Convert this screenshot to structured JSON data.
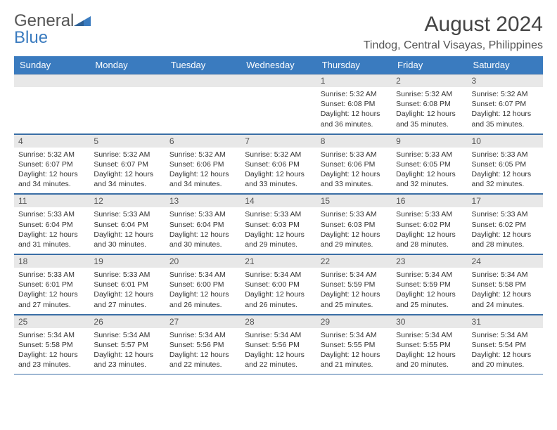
{
  "logo": {
    "general": "General",
    "blue": "Blue"
  },
  "header": {
    "title": "August 2024",
    "location": "Tindog, Central Visayas, Philippines"
  },
  "colors": {
    "header_bg": "#3a7bbf",
    "header_text": "#ffffff",
    "daynum_bg": "#e8e8e8",
    "border": "#3a6ea5"
  },
  "calendar": {
    "weekdays": [
      "Sunday",
      "Monday",
      "Tuesday",
      "Wednesday",
      "Thursday",
      "Friday",
      "Saturday"
    ],
    "weeks": [
      [
        {
          "day": "",
          "lines": []
        },
        {
          "day": "",
          "lines": []
        },
        {
          "day": "",
          "lines": []
        },
        {
          "day": "",
          "lines": []
        },
        {
          "day": "1",
          "lines": [
            "Sunrise: 5:32 AM",
            "Sunset: 6:08 PM",
            "Daylight: 12 hours and 36 minutes."
          ]
        },
        {
          "day": "2",
          "lines": [
            "Sunrise: 5:32 AM",
            "Sunset: 6:08 PM",
            "Daylight: 12 hours and 35 minutes."
          ]
        },
        {
          "day": "3",
          "lines": [
            "Sunrise: 5:32 AM",
            "Sunset: 6:07 PM",
            "Daylight: 12 hours and 35 minutes."
          ]
        }
      ],
      [
        {
          "day": "4",
          "lines": [
            "Sunrise: 5:32 AM",
            "Sunset: 6:07 PM",
            "Daylight: 12 hours and 34 minutes."
          ]
        },
        {
          "day": "5",
          "lines": [
            "Sunrise: 5:32 AM",
            "Sunset: 6:07 PM",
            "Daylight: 12 hours and 34 minutes."
          ]
        },
        {
          "day": "6",
          "lines": [
            "Sunrise: 5:32 AM",
            "Sunset: 6:06 PM",
            "Daylight: 12 hours and 34 minutes."
          ]
        },
        {
          "day": "7",
          "lines": [
            "Sunrise: 5:32 AM",
            "Sunset: 6:06 PM",
            "Daylight: 12 hours and 33 minutes."
          ]
        },
        {
          "day": "8",
          "lines": [
            "Sunrise: 5:33 AM",
            "Sunset: 6:06 PM",
            "Daylight: 12 hours and 33 minutes."
          ]
        },
        {
          "day": "9",
          "lines": [
            "Sunrise: 5:33 AM",
            "Sunset: 6:05 PM",
            "Daylight: 12 hours and 32 minutes."
          ]
        },
        {
          "day": "10",
          "lines": [
            "Sunrise: 5:33 AM",
            "Sunset: 6:05 PM",
            "Daylight: 12 hours and 32 minutes."
          ]
        }
      ],
      [
        {
          "day": "11",
          "lines": [
            "Sunrise: 5:33 AM",
            "Sunset: 6:04 PM",
            "Daylight: 12 hours and 31 minutes."
          ]
        },
        {
          "day": "12",
          "lines": [
            "Sunrise: 5:33 AM",
            "Sunset: 6:04 PM",
            "Daylight: 12 hours and 30 minutes."
          ]
        },
        {
          "day": "13",
          "lines": [
            "Sunrise: 5:33 AM",
            "Sunset: 6:04 PM",
            "Daylight: 12 hours and 30 minutes."
          ]
        },
        {
          "day": "14",
          "lines": [
            "Sunrise: 5:33 AM",
            "Sunset: 6:03 PM",
            "Daylight: 12 hours and 29 minutes."
          ]
        },
        {
          "day": "15",
          "lines": [
            "Sunrise: 5:33 AM",
            "Sunset: 6:03 PM",
            "Daylight: 12 hours and 29 minutes."
          ]
        },
        {
          "day": "16",
          "lines": [
            "Sunrise: 5:33 AM",
            "Sunset: 6:02 PM",
            "Daylight: 12 hours and 28 minutes."
          ]
        },
        {
          "day": "17",
          "lines": [
            "Sunrise: 5:33 AM",
            "Sunset: 6:02 PM",
            "Daylight: 12 hours and 28 minutes."
          ]
        }
      ],
      [
        {
          "day": "18",
          "lines": [
            "Sunrise: 5:33 AM",
            "Sunset: 6:01 PM",
            "Daylight: 12 hours and 27 minutes."
          ]
        },
        {
          "day": "19",
          "lines": [
            "Sunrise: 5:33 AM",
            "Sunset: 6:01 PM",
            "Daylight: 12 hours and 27 minutes."
          ]
        },
        {
          "day": "20",
          "lines": [
            "Sunrise: 5:34 AM",
            "Sunset: 6:00 PM",
            "Daylight: 12 hours and 26 minutes."
          ]
        },
        {
          "day": "21",
          "lines": [
            "Sunrise: 5:34 AM",
            "Sunset: 6:00 PM",
            "Daylight: 12 hours and 26 minutes."
          ]
        },
        {
          "day": "22",
          "lines": [
            "Sunrise: 5:34 AM",
            "Sunset: 5:59 PM",
            "Daylight: 12 hours and 25 minutes."
          ]
        },
        {
          "day": "23",
          "lines": [
            "Sunrise: 5:34 AM",
            "Sunset: 5:59 PM",
            "Daylight: 12 hours and 25 minutes."
          ]
        },
        {
          "day": "24",
          "lines": [
            "Sunrise: 5:34 AM",
            "Sunset: 5:58 PM",
            "Daylight: 12 hours and 24 minutes."
          ]
        }
      ],
      [
        {
          "day": "25",
          "lines": [
            "Sunrise: 5:34 AM",
            "Sunset: 5:58 PM",
            "Daylight: 12 hours and 23 minutes."
          ]
        },
        {
          "day": "26",
          "lines": [
            "Sunrise: 5:34 AM",
            "Sunset: 5:57 PM",
            "Daylight: 12 hours and 23 minutes."
          ]
        },
        {
          "day": "27",
          "lines": [
            "Sunrise: 5:34 AM",
            "Sunset: 5:56 PM",
            "Daylight: 12 hours and 22 minutes."
          ]
        },
        {
          "day": "28",
          "lines": [
            "Sunrise: 5:34 AM",
            "Sunset: 5:56 PM",
            "Daylight: 12 hours and 22 minutes."
          ]
        },
        {
          "day": "29",
          "lines": [
            "Sunrise: 5:34 AM",
            "Sunset: 5:55 PM",
            "Daylight: 12 hours and 21 minutes."
          ]
        },
        {
          "day": "30",
          "lines": [
            "Sunrise: 5:34 AM",
            "Sunset: 5:55 PM",
            "Daylight: 12 hours and 20 minutes."
          ]
        },
        {
          "day": "31",
          "lines": [
            "Sunrise: 5:34 AM",
            "Sunset: 5:54 PM",
            "Daylight: 12 hours and 20 minutes."
          ]
        }
      ]
    ]
  }
}
